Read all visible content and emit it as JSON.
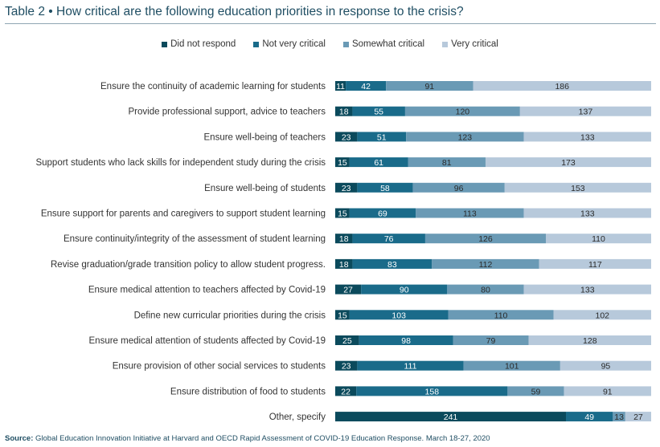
{
  "title": "Table 2 • How critical are the following education priorities in response to the crisis?",
  "source_label": "Source:",
  "source_text": "Global Education Innovation Initiative at Harvard and OECD Rapid Assessment of COVID-19 Education Response. March 18-27, 2020",
  "colors": {
    "Did not respond": "#0b4a5c",
    "Not very critical": "#1a6b8a",
    "Somewhat critical": "#6a9ab5",
    "Very critical": "#b7c9db"
  },
  "chart_data": {
    "type": "bar",
    "orientation": "horizontal",
    "stacked": true,
    "categories": [
      "Ensure the continuity of academic learning for students",
      "Provide professional support, advice to teachers",
      "Ensure well-being of teachers",
      "Support students who lack skills for independent study during the crisis",
      "Ensure well-being of students",
      "Ensure support for parents and caregivers to support student learning",
      "Ensure continuity/integrity of the assessment of student learning",
      "Revise graduation/grade transition policy to allow student progress.",
      "Ensure medical attention to teachers affected by Covid-19",
      "Define new curricular priorities during the crisis",
      "Ensure medical attention of students affected by Covid-19",
      "Ensure provision of other social services to students",
      "Ensure distribution of food to students",
      "Other, specify"
    ],
    "series": [
      {
        "name": "Did not respond",
        "values": [
          11,
          18,
          23,
          15,
          23,
          15,
          18,
          18,
          27,
          15,
          25,
          23,
          22,
          241
        ]
      },
      {
        "name": "Not very critical",
        "values": [
          42,
          55,
          51,
          61,
          58,
          69,
          76,
          83,
          90,
          103,
          98,
          111,
          158,
          49
        ]
      },
      {
        "name": "Somewhat critical",
        "values": [
          91,
          120,
          123,
          81,
          96,
          113,
          126,
          112,
          80,
          110,
          79,
          101,
          59,
          13
        ]
      },
      {
        "name": "Very critical",
        "values": [
          186,
          137,
          133,
          173,
          153,
          133,
          110,
          117,
          133,
          102,
          128,
          95,
          91,
          27
        ]
      }
    ],
    "legend_position": "top-center",
    "grid": false
  }
}
